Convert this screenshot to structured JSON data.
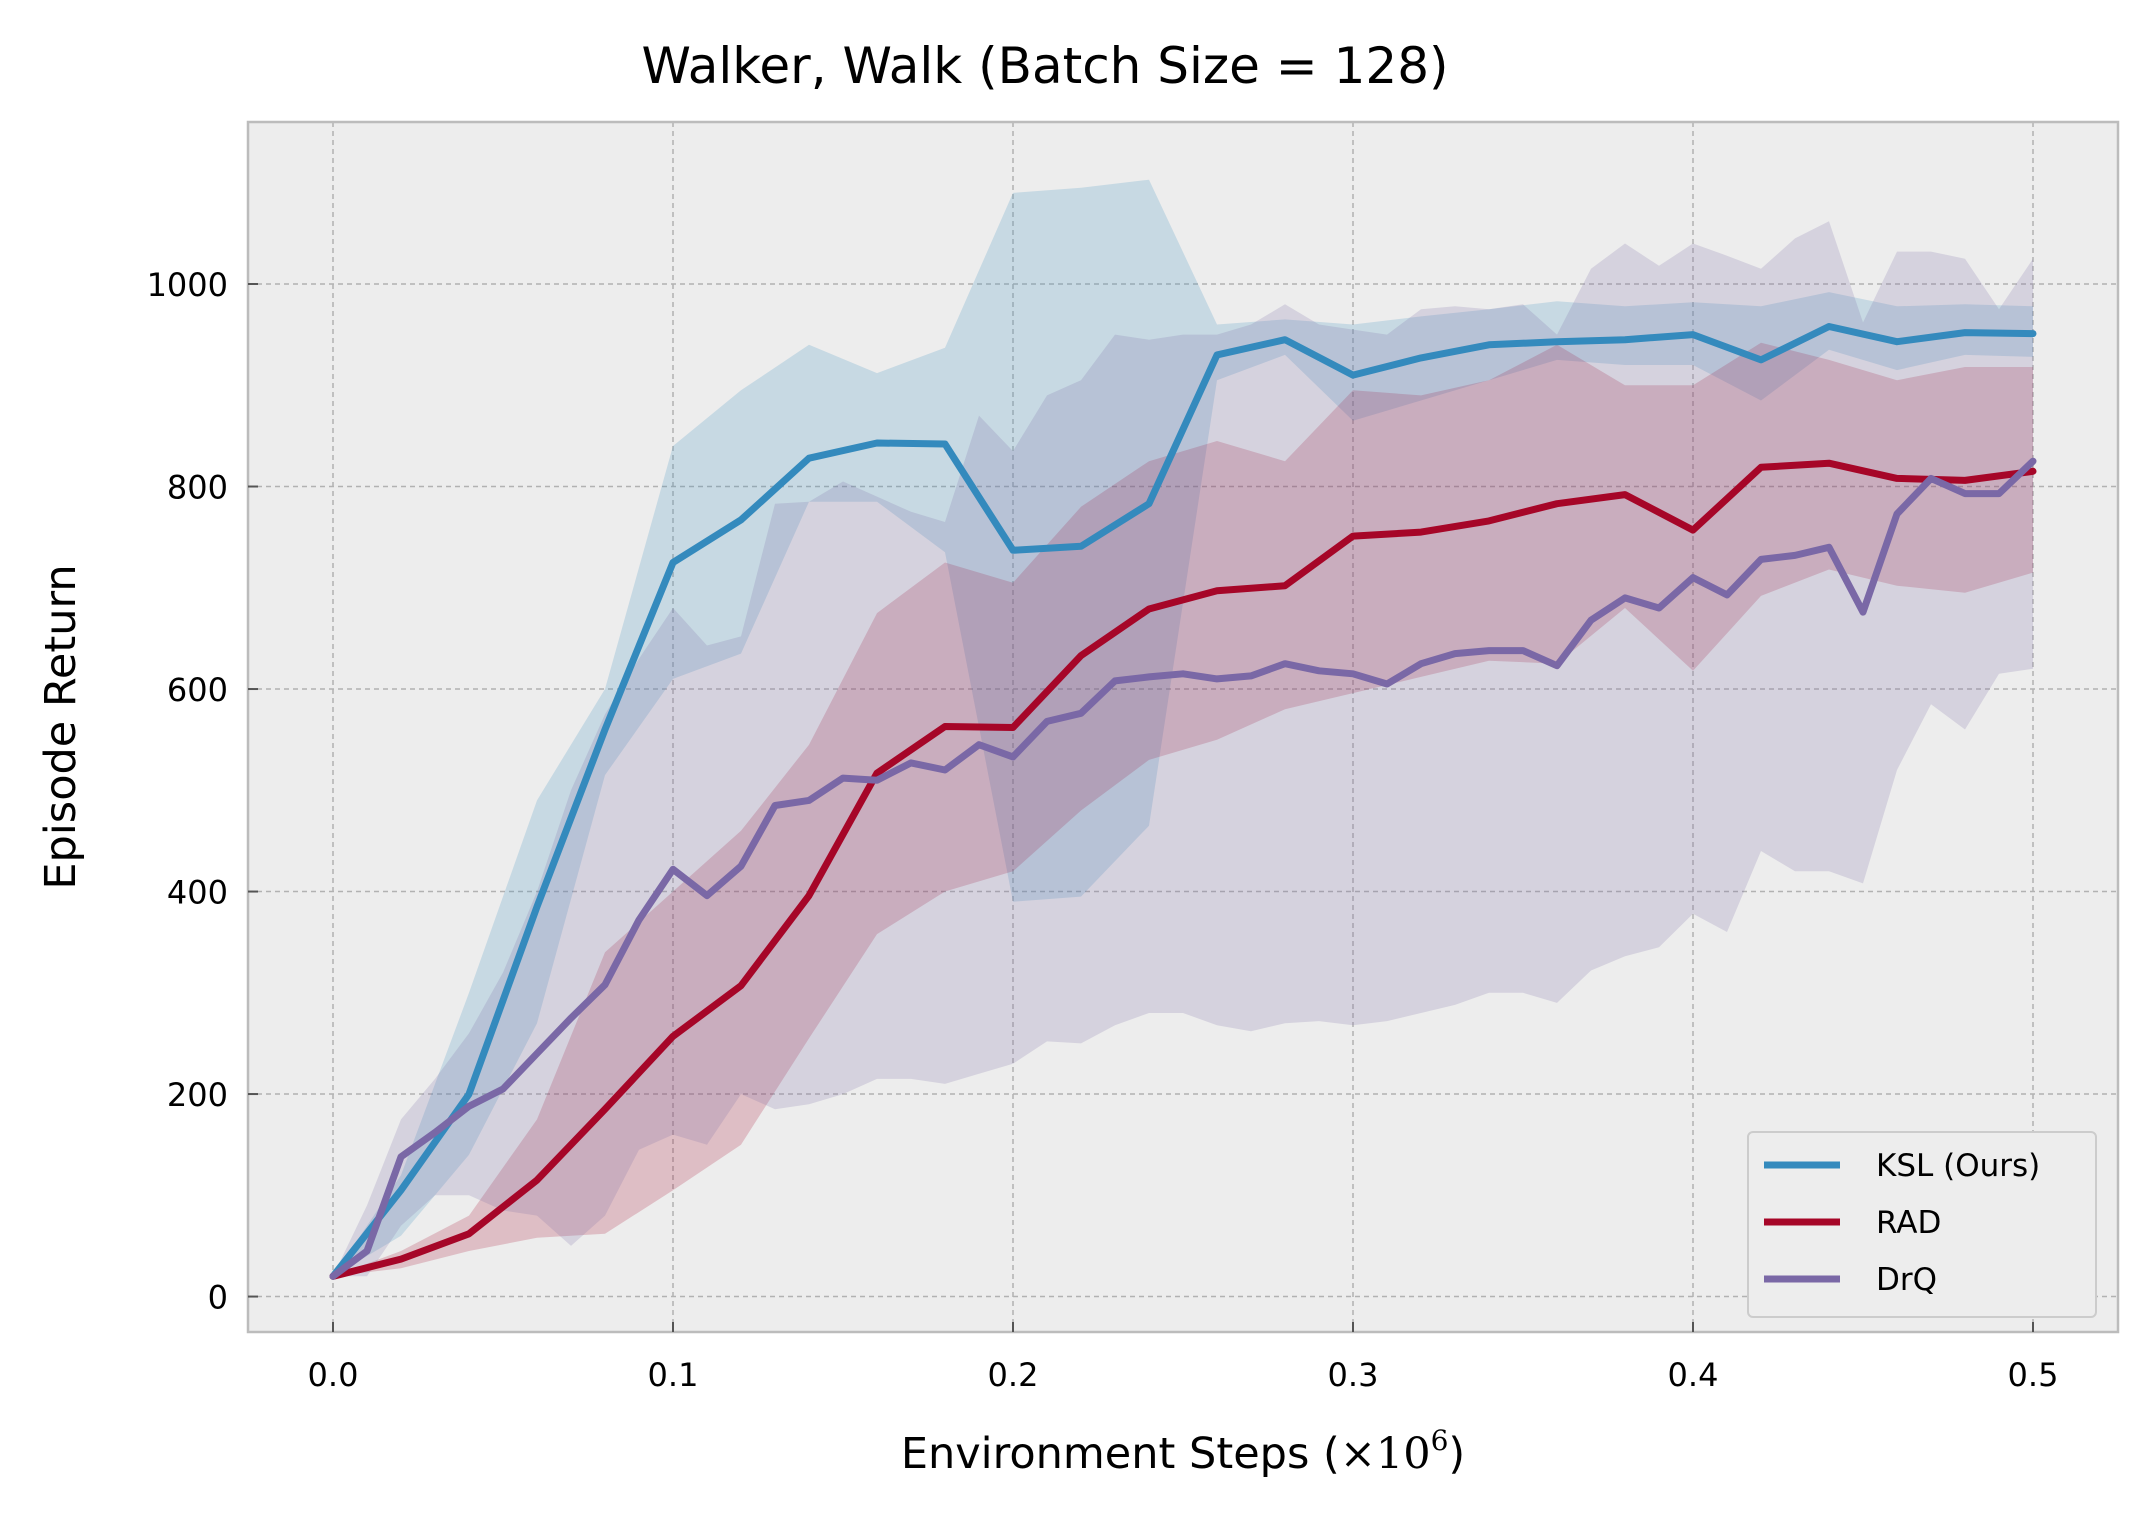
{
  "chart_data": {
    "type": "line",
    "title": "Walker, Walk (Batch Size = 128)",
    "xlabel_main": "Environment Steps (",
    "xlabel_times": "×10",
    "xlabel_exp": "6",
    "xlabel_close": ")",
    "ylabel": "Episode Return",
    "xlim": [
      -0.025,
      0.525
    ],
    "ylim": [
      -35,
      1160
    ],
    "xticks": [
      0.0,
      0.1,
      0.2,
      0.3,
      0.4,
      0.5
    ],
    "xtick_labels": [
      "0.0",
      "0.1",
      "0.2",
      "0.3",
      "0.4",
      "0.5"
    ],
    "yticks": [
      0,
      200,
      400,
      600,
      800,
      1000
    ],
    "ytick_labels": [
      "0",
      "200",
      "400",
      "600",
      "800",
      "1000"
    ],
    "grid": true,
    "legend_position": "bottom-right",
    "background": "#ededed",
    "series": [
      {
        "name": "KSL (Ours)",
        "color": "#348abd",
        "x": [
          0.0,
          0.02,
          0.04,
          0.06,
          0.08,
          0.1,
          0.12,
          0.14,
          0.16,
          0.18,
          0.2,
          0.22,
          0.24,
          0.26,
          0.28,
          0.3,
          0.32,
          0.34,
          0.36,
          0.38,
          0.4,
          0.42,
          0.44,
          0.46,
          0.48,
          0.5
        ],
        "y": [
          20,
          105,
          200,
          385,
          560,
          725,
          767,
          828,
          843,
          842,
          737,
          741,
          783,
          930,
          945,
          910,
          927,
          940,
          943,
          945,
          950,
          925,
          958,
          943,
          952,
          951
        ],
        "upper": [
          20,
          120,
          300,
          490,
          600,
          840,
          895,
          940,
          912,
          937,
          1090,
          1095,
          1103,
          960,
          965,
          960,
          968,
          975,
          983,
          978,
          982,
          978,
          992,
          978,
          980,
          978
        ],
        "lower": [
          20,
          60,
          140,
          270,
          515,
          610,
          635,
          785,
          785,
          735,
          390,
          395,
          465,
          905,
          930,
          865,
          885,
          905,
          925,
          920,
          920,
          885,
          935,
          915,
          930,
          928
        ]
      },
      {
        "name": "RAD",
        "color": "#a60628",
        "x": [
          0.0,
          0.02,
          0.04,
          0.06,
          0.08,
          0.1,
          0.12,
          0.14,
          0.16,
          0.18,
          0.2,
          0.22,
          0.24,
          0.26,
          0.28,
          0.3,
          0.32,
          0.34,
          0.36,
          0.38,
          0.4,
          0.42,
          0.44,
          0.46,
          0.48,
          0.5
        ],
        "y": [
          20,
          37,
          62,
          115,
          185,
          257,
          307,
          396,
          517,
          563,
          562,
          633,
          679,
          697,
          702,
          751,
          755,
          766,
          783,
          792,
          757,
          819,
          823,
          808,
          806,
          815
        ],
        "upper": [
          20,
          45,
          80,
          175,
          340,
          400,
          460,
          545,
          675,
          725,
          705,
          780,
          825,
          845,
          825,
          895,
          890,
          905,
          940,
          900,
          900,
          942,
          925,
          905,
          918,
          918
        ],
        "lower": [
          20,
          28,
          45,
          58,
          62,
          105,
          150,
          255,
          358,
          400,
          420,
          480,
          530,
          550,
          580,
          596,
          612,
          628,
          625,
          680,
          618,
          692,
          718,
          702,
          695,
          715
        ]
      },
      {
        "name": "DrQ",
        "color": "#7a68a6",
        "x": [
          0.0,
          0.01,
          0.02,
          0.03,
          0.04,
          0.05,
          0.06,
          0.07,
          0.08,
          0.09,
          0.1,
          0.11,
          0.12,
          0.13,
          0.14,
          0.15,
          0.16,
          0.17,
          0.18,
          0.19,
          0.2,
          0.21,
          0.22,
          0.23,
          0.24,
          0.25,
          0.26,
          0.27,
          0.28,
          0.29,
          0.3,
          0.31,
          0.32,
          0.33,
          0.34,
          0.35,
          0.36,
          0.37,
          0.38,
          0.39,
          0.4,
          0.41,
          0.42,
          0.43,
          0.44,
          0.45,
          0.46,
          0.47,
          0.48,
          0.49,
          0.5
        ],
        "y": [
          20,
          45,
          138,
          162,
          188,
          205,
          240,
          275,
          308,
          372,
          422,
          396,
          425,
          485,
          490,
          512,
          510,
          527,
          520,
          545,
          533,
          568,
          576,
          608,
          612,
          615,
          610,
          613,
          625,
          618,
          615,
          605,
          625,
          635,
          638,
          638,
          623,
          668,
          690,
          680,
          710,
          693,
          728,
          732,
          740,
          676,
          773,
          808,
          793,
          793,
          825
        ],
        "upper": [
          20,
          90,
          175,
          215,
          260,
          320,
          400,
          500,
          575,
          630,
          680,
          643,
          652,
          783,
          785,
          805,
          790,
          775,
          765,
          870,
          835,
          890,
          905,
          950,
          945,
          950,
          950,
          960,
          980,
          960,
          955,
          950,
          975,
          978,
          975,
          980,
          950,
          1015,
          1040,
          1018,
          1040,
          1028,
          1015,
          1045,
          1062,
          962,
          1032,
          1032,
          1025,
          975,
          1025
        ],
        "lower": [
          20,
          20,
          70,
          100,
          100,
          85,
          80,
          50,
          80,
          145,
          160,
          150,
          200,
          185,
          190,
          200,
          215,
          215,
          210,
          220,
          230,
          252,
          250,
          268,
          280,
          280,
          268,
          262,
          270,
          272,
          268,
          272,
          280,
          288,
          300,
          300,
          290,
          322,
          336,
          345,
          378,
          360,
          440,
          420,
          420,
          408,
          520,
          585,
          560,
          615,
          620
        ]
      }
    ]
  }
}
